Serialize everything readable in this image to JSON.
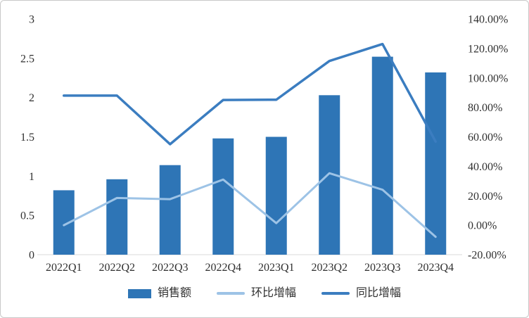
{
  "page": {
    "background": "#ffffff",
    "border_color": "#c9c9c9",
    "text_color": "#303030"
  },
  "chart_data": {
    "type": "bar",
    "subtype": "combo-bar-line",
    "title": "",
    "grid": false,
    "legend_position": "bottom",
    "categories": [
      "2022Q1",
      "2022Q2",
      "2022Q3",
      "2022Q4",
      "2023Q1",
      "2023Q2",
      "2023Q3",
      "2023Q4"
    ],
    "series": [
      {
        "id": "sales-bars",
        "name": "销售额",
        "type": "bar",
        "axis": "left",
        "color": "#2E75B6",
        "values": [
          0.82,
          0.96,
          1.14,
          1.48,
          1.5,
          2.03,
          2.52,
          2.32
        ]
      },
      {
        "id": "mom-growth-line",
        "name": "环比增幅",
        "type": "line",
        "axis": "right",
        "color": "#9DC3E6",
        "stroke_width": 3,
        "unit": "%",
        "values": [
          0.0,
          18.5,
          17.7,
          31.0,
          1.4,
          35.3,
          24.1,
          -7.9
        ]
      },
      {
        "id": "yoy-growth-line",
        "name": "同比增幅",
        "type": "line",
        "axis": "right",
        "color": "#3B7DC0",
        "stroke_width": 3.5,
        "unit": "%",
        "values": [
          88.0,
          88.0,
          55.0,
          85.0,
          85.2,
          111.5,
          123.0,
          56.8
        ]
      }
    ],
    "axes": {
      "left": {
        "min": 0,
        "max": 3,
        "ticks": [
          "0",
          "0.5",
          "1",
          "1.5",
          "2",
          "2.5",
          "3"
        ]
      },
      "right": {
        "min": -20,
        "max": 140,
        "ticks": [
          "-20.00%",
          "0.00%",
          "20.00%",
          "40.00%",
          "60.00%",
          "80.00%",
          "100.00%",
          "120.00%",
          "140.00%"
        ]
      }
    }
  }
}
